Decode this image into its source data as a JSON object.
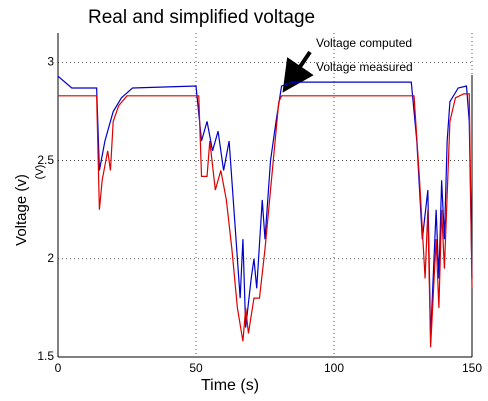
{
  "chart_data": {
    "type": "line",
    "title": "Real and simplified voltage",
    "xlabel": "Time (s)",
    "ylabel": "Voltage (v)",
    "unit_label": "(V)",
    "xlim": [
      0,
      150
    ],
    "ylim": [
      1.5,
      3.15
    ],
    "xticks": [
      0,
      50,
      100,
      150
    ],
    "yticks": [
      1.5,
      2,
      2.5,
      3
    ],
    "grid": true,
    "series": [
      {
        "name": "Voltage computed",
        "color": "#0000cc",
        "x": [
          0,
          5,
          14,
          15,
          17,
          20,
          23,
          27,
          50,
          52,
          54,
          56,
          58,
          60,
          62,
          64,
          66,
          67,
          68,
          70,
          71,
          72,
          74,
          75,
          77,
          79,
          81,
          85,
          128,
          130,
          132,
          134,
          135,
          137,
          138,
          139,
          140,
          141,
          142,
          145,
          148,
          149,
          150
        ],
        "values": [
          2.93,
          2.87,
          2.87,
          2.45,
          2.6,
          2.75,
          2.82,
          2.87,
          2.88,
          2.6,
          2.7,
          2.55,
          2.65,
          2.45,
          2.6,
          2.2,
          1.8,
          2.1,
          1.65,
          1.9,
          2.0,
          1.85,
          2.3,
          2.1,
          2.5,
          2.7,
          2.88,
          2.9,
          2.9,
          2.6,
          2.1,
          2.35,
          1.6,
          2.25,
          1.9,
          2.4,
          2.1,
          2.6,
          2.8,
          2.87,
          2.88,
          2.7,
          1.9
        ]
      },
      {
        "name": "Voltage measured",
        "color": "#dd0000",
        "x": [
          0,
          14,
          15,
          16,
          18,
          19,
          20,
          22,
          25,
          51,
          52,
          54,
          55,
          57,
          59,
          61,
          63,
          65,
          67,
          68,
          69,
          71,
          73,
          75,
          77,
          79,
          80,
          81,
          129,
          131,
          133,
          134,
          135,
          137,
          138,
          139,
          140,
          142,
          144,
          147,
          149,
          150
        ],
        "values": [
          2.83,
          2.83,
          2.25,
          2.4,
          2.55,
          2.45,
          2.7,
          2.78,
          2.83,
          2.83,
          2.42,
          2.42,
          2.6,
          2.35,
          2.45,
          2.3,
          2.05,
          1.75,
          1.58,
          1.75,
          1.62,
          1.8,
          1.8,
          2.05,
          2.35,
          2.65,
          2.8,
          2.83,
          2.83,
          2.4,
          1.9,
          2.25,
          1.55,
          2.1,
          1.75,
          2.25,
          1.95,
          2.7,
          2.82,
          2.84,
          2.84,
          1.85
        ]
      }
    ]
  }
}
